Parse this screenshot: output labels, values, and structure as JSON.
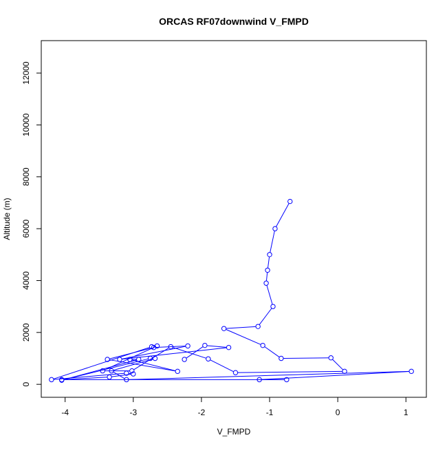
{
  "chart_data": {
    "type": "line",
    "title": "ORCAS RF07downwind V_FMPD",
    "xlabel": "V_FMPD",
    "ylabel": "Altitude (m)",
    "xlim": [
      -4.35,
      1.3
    ],
    "ylim": [
      -500,
      13250
    ],
    "xticks": [
      -4,
      -3,
      -2,
      -1,
      0,
      1
    ],
    "xtick_labels": [
      "-4",
      "-3",
      "-2",
      "-1",
      "0",
      "1"
    ],
    "yticks": [
      0,
      2000,
      4000,
      6000,
      8000,
      10000,
      12000
    ],
    "ytick_labels": [
      "0",
      "2000",
      "4000",
      "6000",
      "8000",
      "10000",
      "12000"
    ],
    "marker": "open-circle",
    "grid": false,
    "colors": {
      "series": "#0000ff",
      "axis": "#000000",
      "background": "#ffffff"
    },
    "series": [
      {
        "x": [
          -0.7,
          -0.92,
          -1.0,
          -1.03,
          -1.05,
          -0.95,
          -1.17,
          -1.67,
          -1.1,
          -0.83,
          -0.1,
          0.1,
          -1.5,
          -1.9,
          -2.45,
          -3.02,
          -3.45,
          -2.65,
          -2.73,
          -4.2,
          -3.1,
          -3.0,
          -3.35,
          -4.05,
          -0.75,
          -1.15,
          1.08,
          -3.1,
          -3.32,
          -2.68,
          -2.75,
          -4.05,
          -2.92,
          -3.05,
          -2.35,
          -3.38,
          -2.7,
          -2.2,
          -3.2,
          -1.6,
          -1.95,
          -2.25
        ],
        "y": [
          7050,
          6000,
          5000,
          4400,
          3900,
          3000,
          2230,
          2150,
          1500,
          1000,
          1020,
          500,
          450,
          980,
          1450,
          520,
          520,
          1480,
          1450,
          180,
          430,
          400,
          280,
          180,
          180,
          180,
          500,
          180,
          520,
          1000,
          1000,
          160,
          960,
          960,
          500,
          960,
          1420,
          1480,
          960,
          1420,
          1500,
          960
        ]
      }
    ]
  }
}
